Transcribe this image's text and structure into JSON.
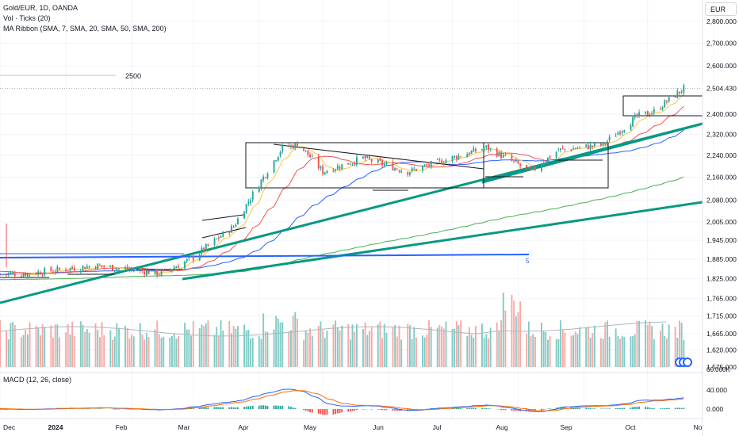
{
  "legend": {
    "symbol": "Gold/EUR, 1D, OANDA",
    "vol": "Vol · Ticks (20)",
    "ma": "MA Ribbon (SMA, 7, SMA, 20, SMA, 50, SMA, 200)",
    "macd": "MACD (12, 26, close)"
  },
  "currency_label": "EUR",
  "annotations": {
    "target_label": "2500",
    "box_number": "5"
  },
  "colors": {
    "up": "#26a69a",
    "down": "#ef5350",
    "trend": "#089981",
    "blue": "#2962ff",
    "ma7": "#f7c544",
    "ma20": "#ef5350",
    "ma50": "#2962ff",
    "ma200": "#4caf50",
    "macd": "#2962ff",
    "signal": "#ff6d00"
  },
  "chart_data": [
    {
      "type": "candlestick",
      "title": "Gold/EUR, 1D, OANDA",
      "y_axis": {
        "scale": "log",
        "ticks": [
          "2,800.000",
          "2,700.000",
          "2,600.000",
          "2,504.430",
          "2,400.000",
          "2,320.000",
          "2,240.000",
          "2,160.000",
          "2,080.000",
          "2,005.000",
          "1,945.000",
          "1,885.000",
          "1,825.000",
          "1,765.000",
          "1,715.000",
          "1,665.000",
          "1,620.000",
          "1,575.000"
        ],
        "last_price": "2,504.430"
      },
      "x_axis": {
        "ticks": [
          "Dec",
          "2024",
          "Feb",
          "Mar",
          "Apr",
          "May",
          "Jun",
          "Jul",
          "Aug",
          "Sep",
          "Oct",
          "No"
        ]
      },
      "key_points": [
        {
          "date": "2023-12-13",
          "close": 1840
        },
        {
          "date": "2024-01-15",
          "close": 1865
        },
        {
          "date": "2024-02-15",
          "close": 1840
        },
        {
          "date": "2024-03-01",
          "close": 1890
        },
        {
          "date": "2024-03-20",
          "close": 1990
        },
        {
          "date": "2024-04-12",
          "close": 2270
        },
        {
          "date": "2024-04-20",
          "close": 2280
        },
        {
          "date": "2024-05-01",
          "close": 2180
        },
        {
          "date": "2024-05-20",
          "close": 2230
        },
        {
          "date": "2024-06-10",
          "close": 2180
        },
        {
          "date": "2024-07-17",
          "close": 2270
        },
        {
          "date": "2024-08-07",
          "close": 2180
        },
        {
          "date": "2024-08-20",
          "close": 2260
        },
        {
          "date": "2024-09-10",
          "close": 2280
        },
        {
          "date": "2024-09-26",
          "close": 2390
        },
        {
          "date": "2024-10-04",
          "close": 2410
        },
        {
          "date": "2024-10-18",
          "close": 2504.43
        }
      ],
      "moving_averages": [
        "SMA 7",
        "SMA 20",
        "SMA 50",
        "SMA 200"
      ]
    },
    {
      "type": "bar",
      "title": "Vol · Ticks (20)",
      "note": "daily tick volume with 20-period average"
    },
    {
      "type": "line",
      "title": "MACD (12, 26, close)",
      "y_axis": {
        "ticks": [
          "40.000",
          "0.000"
        ]
      },
      "series": [
        {
          "name": "MACD"
        },
        {
          "name": "Signal"
        },
        {
          "name": "Histogram"
        }
      ]
    }
  ],
  "axis": {
    "price_ticks": [
      "2,800.000",
      "2,700.000",
      "2,600.000",
      "2,504.430",
      "2,400.000",
      "2,320.000",
      "2,240.000",
      "2,160.000",
      "2,080.000",
      "2,005.000",
      "1,945.000",
      "1,885.000",
      "1,825.000",
      "1,765.000",
      "1,715.000",
      "1,665.000",
      "1,620.000",
      "1,575.000"
    ],
    "vol_top_tick": "60.000K",
    "macd_ticks": [
      "40.000",
      "0.000"
    ],
    "time_ticks": [
      "Dec",
      "2024",
      "Feb",
      "Mar",
      "Apr",
      "May",
      "Jun",
      "Jul",
      "Aug",
      "Sep",
      "Oct",
      "No"
    ]
  }
}
